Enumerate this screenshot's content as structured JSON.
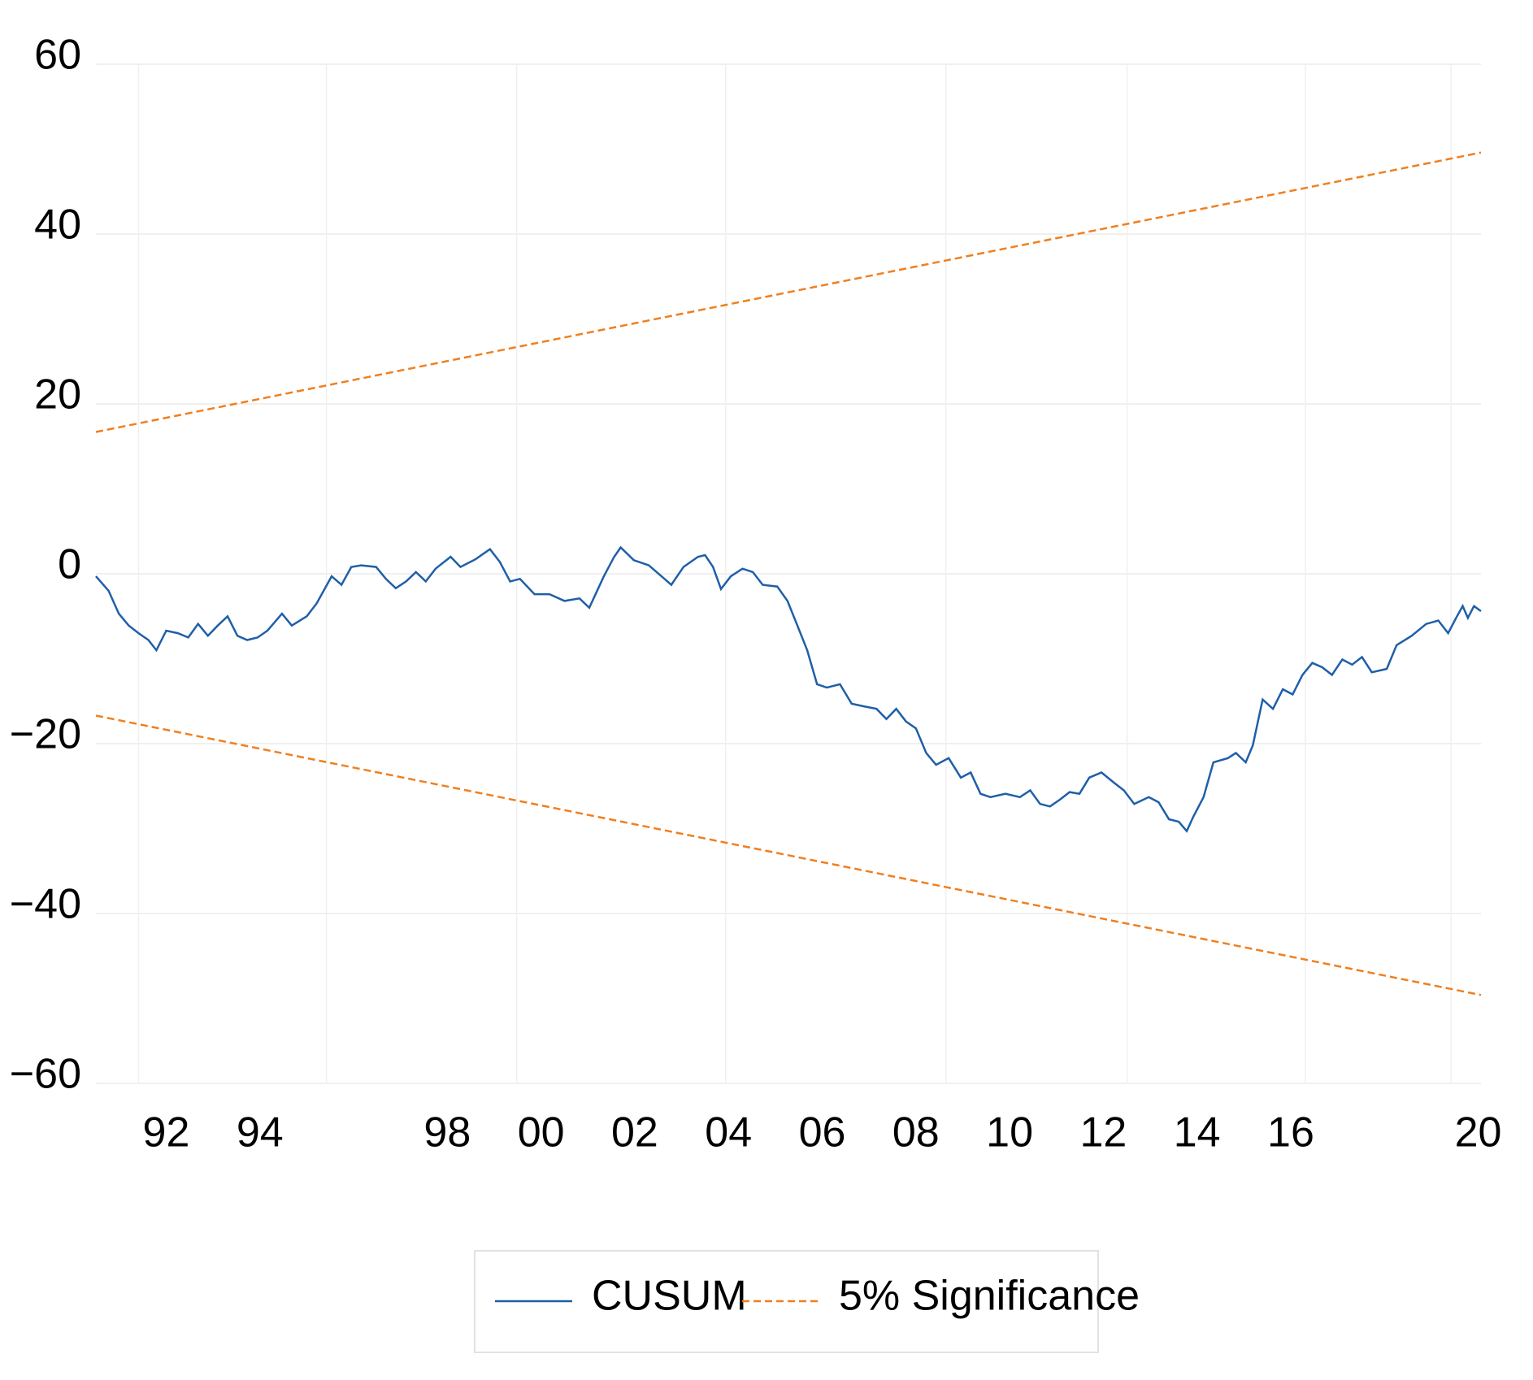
{
  "chart_data": {
    "type": "line",
    "xlim": [
      1990.5,
      2020.06
    ],
    "ylim": [
      -60,
      60
    ],
    "yticks": [
      {
        "value": -60,
        "label": "−60"
      },
      {
        "value": -40,
        "label": "−40"
      },
      {
        "value": -20,
        "label": "−20"
      },
      0,
      20,
      40,
      60
    ],
    "xticks": [
      {
        "value": 1992,
        "label": "92"
      },
      {
        "value": 1994,
        "label": "94"
      },
      {
        "value": 1998,
        "label": "98"
      },
      {
        "value": 2000,
        "label": "00"
      },
      {
        "value": 2002,
        "label": "02"
      },
      {
        "value": 2004,
        "label": "04"
      },
      {
        "value": 2006,
        "label": "06"
      },
      {
        "value": 2008,
        "label": "08"
      },
      {
        "value": 2010,
        "label": "10"
      },
      {
        "value": 2012,
        "label": "12"
      },
      {
        "value": 2014,
        "label": "14"
      },
      {
        "value": 2016,
        "label": "16"
      },
      {
        "value": 2020,
        "label": "20"
      }
    ],
    "xgrid": [
      1991.41,
      1995.42,
      1999.48,
      2003.94,
      2008.64,
      2012.51,
      2016.31,
      2019.42
    ],
    "grid": true,
    "legend": "bottom",
    "series": [
      {
        "name": "CUSUM",
        "color": "#1f5fa8",
        "x": [
          1990.5,
          1990.77,
          1990.99,
          1991.2,
          1991.41,
          1991.62,
          1991.79,
          1992.0,
          1992.25,
          1992.47,
          1992.68,
          1992.89,
          1993.1,
          1993.31,
          1993.52,
          1993.73,
          1993.95,
          1994.16,
          1994.47,
          1994.68,
          1995.0,
          1995.21,
          1995.53,
          1995.74,
          1995.95,
          1996.16,
          1996.48,
          1996.69,
          1996.9,
          1997.12,
          1997.33,
          1997.54,
          1997.75,
          1998.07,
          1998.28,
          1998.6,
          1998.91,
          1999.12,
          1999.34,
          1999.55,
          1999.86,
          2000.18,
          2000.5,
          2000.82,
          2001.03,
          2001.34,
          2001.56,
          2001.7,
          2001.98,
          2002.3,
          2002.57,
          2002.78,
          2003.04,
          2003.35,
          2003.5,
          2003.67,
          2003.84,
          2004.05,
          2004.3,
          2004.52,
          2004.73,
          2005.04,
          2005.26,
          2005.47,
          2005.68,
          2005.89,
          2006.1,
          2006.38,
          2006.63,
          2006.88,
          2007.16,
          2007.37,
          2007.58,
          2007.79,
          2008.0,
          2008.22,
          2008.43,
          2008.7,
          2008.96,
          2009.17,
          2009.38,
          2009.59,
          2009.91,
          2010.22,
          2010.44,
          2010.65,
          2010.86,
          2011.07,
          2011.28,
          2011.49,
          2011.7,
          2011.96,
          2012.23,
          2012.44,
          2012.66,
          2012.97,
          2013.18,
          2013.4,
          2013.61,
          2013.78,
          2013.92,
          2014.14,
          2014.35,
          2014.66,
          2014.83,
          2015.04,
          2015.19,
          2015.4,
          2015.62,
          2015.83,
          2016.04,
          2016.25,
          2016.46,
          2016.67,
          2016.88,
          2017.1,
          2017.31,
          2017.52,
          2017.73,
          2018.05,
          2018.26,
          2018.58,
          2018.89,
          2019.15,
          2019.36,
          2019.53,
          2019.67,
          2019.78,
          2019.91,
          2020.06
        ],
        "values": [
          -0.3,
          -2,
          -4.7,
          -6.1,
          -7,
          -7.8,
          -9,
          -6.7,
          -7,
          -7.5,
          -5.9,
          -7.3,
          -6.1,
          -5,
          -7.3,
          -7.8,
          -7.5,
          -6.7,
          -4.7,
          -6.1,
          -5,
          -3.5,
          -0.3,
          -1.3,
          0.8,
          1,
          0.8,
          -0.6,
          -1.7,
          -0.9,
          0.2,
          -0.9,
          0.6,
          2,
          0.8,
          1.7,
          2.9,
          1.4,
          -0.9,
          -0.6,
          -2.4,
          -2.4,
          -3.2,
          -2.9,
          -4,
          -0.3,
          2,
          3.1,
          1.6,
          1,
          -0.3,
          -1.3,
          0.8,
          2,
          2.2,
          0.8,
          -1.8,
          -0.3,
          0.6,
          0.2,
          -1.3,
          -1.5,
          -3.2,
          -6.1,
          -9,
          -13,
          -13.4,
          -13,
          -15.3,
          -15.6,
          -15.9,
          -17.1,
          -15.9,
          -17.4,
          -18.2,
          -21.1,
          -22.5,
          -21.7,
          -24,
          -23.4,
          -25.9,
          -26.3,
          -25.9,
          -26.3,
          -25.5,
          -27.1,
          -27.4,
          -26.6,
          -25.7,
          -25.9,
          -24,
          -23.4,
          -24.6,
          -25.5,
          -27.1,
          -26.3,
          -26.9,
          -28.9,
          -29.2,
          -30.3,
          -28.6,
          -26.3,
          -22.2,
          -21.7,
          -21.1,
          -22.2,
          -20.2,
          -14.8,
          -15.9,
          -13.6,
          -14.2,
          -11.9,
          -10.5,
          -11,
          -11.9,
          -10.1,
          -10.7,
          -9.8,
          -11.6,
          -11.2,
          -8.4,
          -7.3,
          -5.9,
          -5.5,
          -7,
          -5.2,
          -3.8,
          -5.2,
          -3.8,
          -4.4
        ]
      },
      {
        "name": "5% Significance",
        "color": "#f07f1e",
        "dashed": true,
        "x": [
          1990.5,
          2020.06
        ],
        "values": [
          16.7,
          49.6
        ],
        "lower": [
          -16.7,
          -49.6
        ]
      }
    ]
  }
}
